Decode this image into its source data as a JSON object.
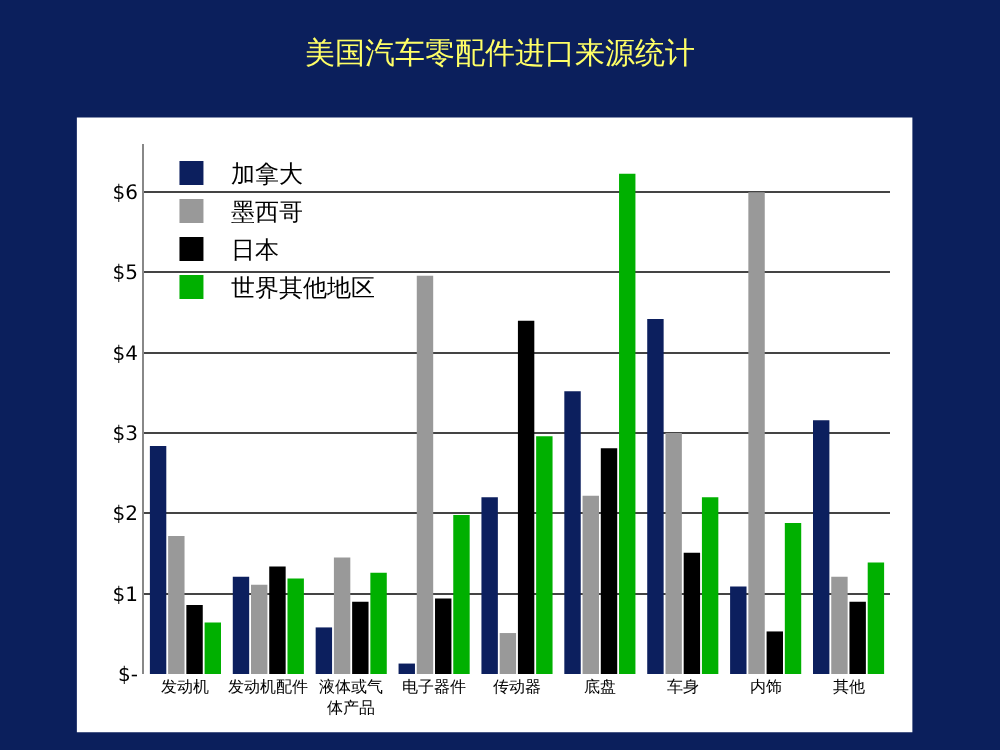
{
  "chart_data": {
    "type": "bar",
    "title": "美国汽车零配件进口来源统计",
    "categories": [
      "发动机",
      "发动机配件",
      "液体或气体产品",
      "电子器件",
      "传动器",
      "底盘",
      "车身",
      "内饰",
      "其他"
    ],
    "series": [
      {
        "name": "加拿大",
        "color": "#0c1f5e",
        "values": [
          2.84,
          1.21,
          0.58,
          0.13,
          2.2,
          3.52,
          4.42,
          1.09,
          3.16
        ]
      },
      {
        "name": "墨西哥",
        "color": "#999999",
        "values": [
          1.72,
          1.11,
          1.45,
          4.96,
          0.51,
          2.22,
          3.0,
          6.0,
          1.21
        ]
      },
      {
        "name": "日本",
        "color": "#000000",
        "values": [
          0.86,
          1.34,
          0.9,
          0.94,
          4.4,
          2.81,
          1.51,
          0.53,
          0.9
        ]
      },
      {
        "name": "世界其他地区",
        "color": "#00b000",
        "values": [
          0.64,
          1.19,
          1.26,
          1.98,
          2.96,
          6.23,
          2.2,
          1.88,
          1.39
        ]
      }
    ],
    "ylim": [
      0,
      6.6
    ],
    "yticks": [
      {
        "value": 0,
        "label": "$-"
      },
      {
        "value": 1,
        "label": "$1"
      },
      {
        "value": 2,
        "label": "$2"
      },
      {
        "value": 3,
        "label": "$3"
      },
      {
        "value": 4,
        "label": "$4"
      },
      {
        "value": 5,
        "label": "$5"
      },
      {
        "value": 6,
        "label": "$6"
      }
    ],
    "grid": "y",
    "legend": "top left"
  }
}
